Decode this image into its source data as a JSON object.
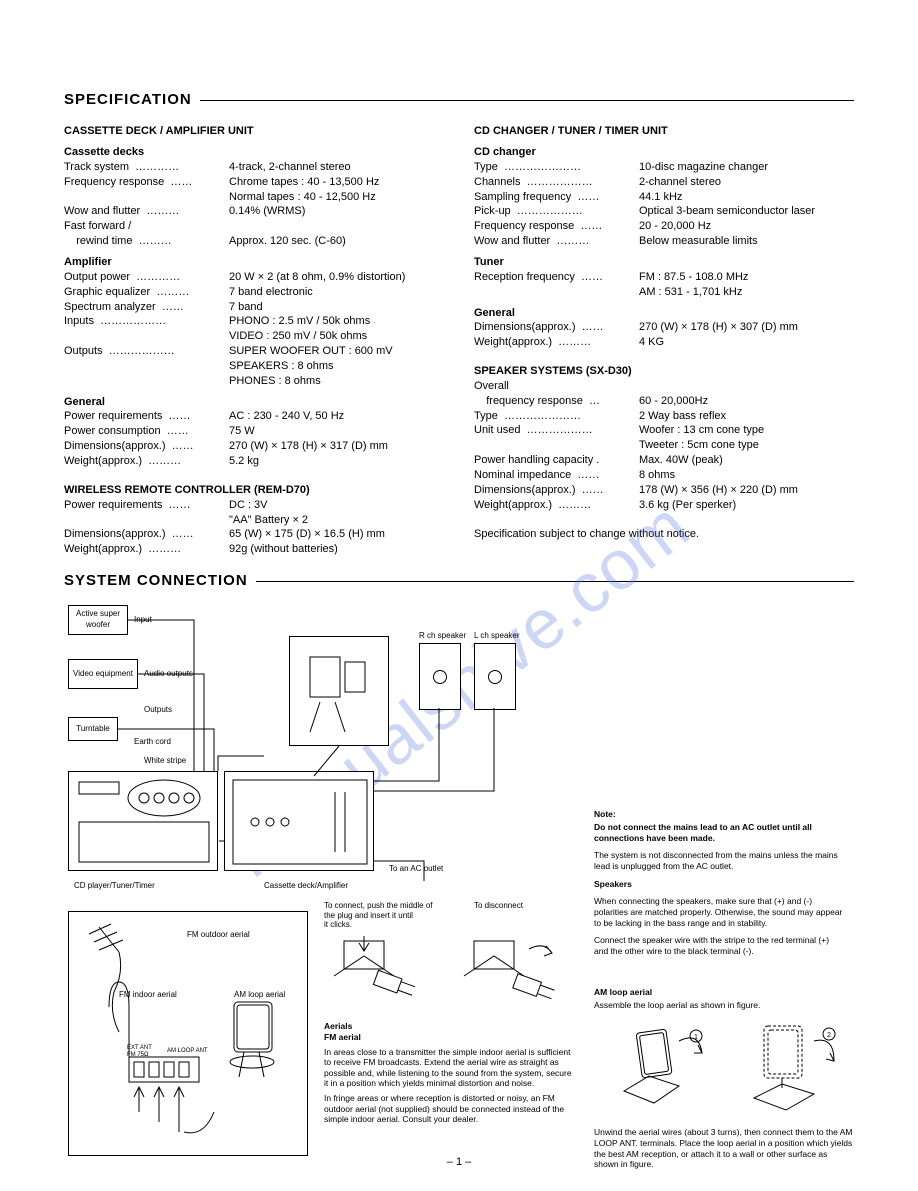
{
  "watermark": "manualshive.com",
  "page_number": "– 1 –",
  "sections": {
    "spec_title": "SPECIFICATION",
    "conn_title": "SYSTEM  CONNECTION"
  },
  "left_col": {
    "h1": "CASSETTE DECK / AMPLIFIER UNIT",
    "g1": "Cassette decks",
    "rows1": [
      {
        "l": "Track system  …………",
        "v": "4-track, 2-channel stereo"
      },
      {
        "l": "Frequency response  ……",
        "v": "Chrome tapes : 40 - 13,500 Hz"
      },
      {
        "l": "",
        "v": "Normal tapes : 40 - 12,500 Hz"
      },
      {
        "l": "Wow and flutter  ………",
        "v": "0.14% (WRMS)"
      },
      {
        "l": "Fast forward /",
        "v": ""
      },
      {
        "l": "    rewind time  ………",
        "v": "Approx. 120 sec. (C-60)"
      }
    ],
    "g2": "Amplifier",
    "rows2": [
      {
        "l": "Output power  …………",
        "v": "20 W × 2 (at 8 ohm, 0.9% distortion)"
      },
      {
        "l": "Graphic equalizer  ………",
        "v": "7 band electronic"
      },
      {
        "l": "Spectrum analyzer  ……",
        "v": "7 band"
      },
      {
        "l": "Inputs  ………………",
        "v": "PHONO : 2.5 mV / 50k ohms"
      },
      {
        "l": "",
        "v": "VIDEO : 250 mV / 50k ohms"
      },
      {
        "l": "Outputs  ………………",
        "v": "SUPER WOOFER OUT : 600 mV"
      },
      {
        "l": "",
        "v": "SPEAKERS : 8 ohms"
      },
      {
        "l": "",
        "v": "PHONES : 8 ohms"
      }
    ],
    "g3": "General",
    "rows3": [
      {
        "l": "Power requirements  ……",
        "v": "AC : 230 - 240 V, 50 Hz"
      },
      {
        "l": "Power consumption  ……",
        "v": "75 W"
      },
      {
        "l": "Dimensions(approx.)  ……",
        "v": "270 (W) × 178 (H) × 317 (D)  mm"
      },
      {
        "l": "Weight(approx.)  ………",
        "v": "5.2 kg"
      }
    ],
    "h2": "WIRELESS  REMOTE  CONTROLLER  (REM-D70)",
    "rows4": [
      {
        "l": "Power requirements  ……",
        "v": "DC : 3V"
      },
      {
        "l": "",
        "v": "\"AA\" Battery × 2"
      },
      {
        "l": "Dimensions(approx.)  ……",
        "v": "65 (W)  ×  175 (D)  ×  16.5 (H)  mm"
      },
      {
        "l": "Weight(approx.)  ………",
        "v": "92g (without batteries)"
      }
    ]
  },
  "right_col": {
    "h1": "CD CHANGER / TUNER / TIMER UNIT",
    "g1": "CD changer",
    "rows1": [
      {
        "l": "Type  …………………",
        "v": "10-disc magazine changer"
      },
      {
        "l": "Channels  ………………",
        "v": "2-channel stereo"
      },
      {
        "l": "Sampling frequency  ……",
        "v": "44.1 kHz"
      },
      {
        "l": "Pick-up  ………………",
        "v": "Optical 3-beam semiconductor laser"
      },
      {
        "l": "Frequency response  ……",
        "v": "20 - 20,000 Hz"
      },
      {
        "l": "Wow and flutter  ………",
        "v": "Below measurable limits"
      }
    ],
    "g2": "Tuner",
    "rows2": [
      {
        "l": "Reception frequency  ……",
        "v": "FM : 87.5 - 108.0 MHz"
      },
      {
        "l": "",
        "v": "AM : 531 - 1,701 kHz"
      }
    ],
    "g3": "General",
    "rows3": [
      {
        "l": "Dimensions(approx.)  ……",
        "v": "270 (W)  ×  178 (H)  ×  307 (D)  mm"
      },
      {
        "l": "Weight(approx.)  ………",
        "v": "4 KG"
      }
    ],
    "h2": "SPEAKER SYSTEMS (SX-D30)",
    "rows4": [
      {
        "l": "Overall",
        "v": ""
      },
      {
        "l": "    frequency response  …",
        "v": "60 - 20,000Hz"
      },
      {
        "l": "Type  …………………",
        "v": "2 Way bass reflex"
      },
      {
        "l": "Unit used  ………………",
        "v": "Woofer : 13 cm cone type"
      },
      {
        "l": "",
        "v": "Tweeter : 5cm cone type"
      },
      {
        "l": "Power handling capacity .",
        "v": "Max. 40W (peak)"
      },
      {
        "l": "Nominal impedance  ……",
        "v": "8 ohms"
      },
      {
        "l": "Dimensions(approx.)  ……",
        "v": "178 (W)  ×  356 (H)  ×  220 (D) mm"
      },
      {
        "l": "Weight(approx.)  ………",
        "v": "3.6 kg (Per sperker)"
      }
    ],
    "notice": "Specification subject to change without notice."
  },
  "conn": {
    "boxes": {
      "asw": "Active super\nwoofer",
      "asw_lbl": "Input",
      "veq": "Video equipment",
      "veq_lbl": "Audio outputs",
      "tt": "Turntable",
      "tt_lbl1": "Outputs",
      "tt_lbl2": "Earth cord",
      "white": "White stripe",
      "rch": "R ch speaker",
      "lch": "L ch speaker",
      "cd": "CD player/Tuner/Timer",
      "amp": "Cassette deck/Amplifier",
      "acout": "To an AC outlet",
      "fm_out": "FM outdoor aerial",
      "fm_in": "FM indoor aerial",
      "am_loop": "AM loop aerial",
      "ext": "EXT ANT\nFM 75Ω",
      "amant": "AM LOOP ANT"
    },
    "plug": {
      "caption1": "To connect, push the middle of\nthe plug and insert it until\nit clicks.",
      "caption2": "To disconnect"
    },
    "right": {
      "note_h": "Note:",
      "note_b": "Do not connect the mains lead to an AC outlet until all connections have been made.",
      "note2": "The system is not disconnected from the mains unless the mains lead is unplugged from the AC outlet.",
      "spk_h": "Speakers",
      "spk1": "When connecting the speakers, make sure that (+) and (-) polarities are matched properly. Otherwise, the sound may appear to be lacking in the bass range and in stability.",
      "spk2": "Connect the speaker wire with the stripe to the red terminal (+) and the other wire to the black terminal (-).",
      "am_h": "AM loop aerial",
      "am_s": "Assemble the loop aerial as shown in figure."
    },
    "aerial": {
      "h": "Aerials",
      "sub": "FM aerial",
      "p1": "In areas close to a transmitter the simple indoor aerial is sufficient to receive FM broadcasts. Extend the aerial wire as straight as possible and, while listening to the sound from the system, secure it in a position which yields minimal distortion and noise.",
      "p2": "In fringe areas or where reception is distorted or noisy, an FM outdoor aerial (not supplied) should be connected instead of the simple indoor aerial. Consult your dealer."
    },
    "loop_caption": "Unwind the aerial wires (about 3 turns), then connect them to the AM LOOP ANT. terminals. Place the loop aerial in a position which yields the best AM reception, or attach it to a wall or other surface as shown in figure."
  }
}
